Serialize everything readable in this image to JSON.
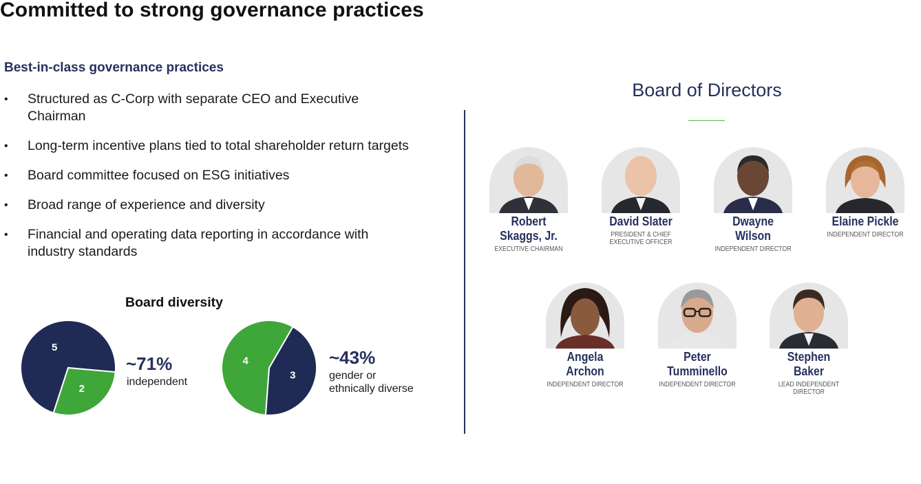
{
  "page": {
    "title": "Committed to strong governance practices",
    "subtitle": "Best-in-class governance practices",
    "bullets": [
      "Structured as C-Corp with separate CEO and Executive Chairman",
      "Long-term incentive plans tied to total shareholder return targets",
      "Board committee focused on ESG initiatives",
      "Broad range of experience and diversity",
      "Financial and operating data reporting in accordance with industry standards"
    ],
    "bullet_marker": "•"
  },
  "diversity": {
    "title": "Board diversity",
    "independent": {
      "stat": "~71%",
      "description": "independent"
    },
    "diverse": {
      "stat": "~43%",
      "description_line1": "gender or",
      "description_line2": "ethnically diverse"
    }
  },
  "chart_data": [
    {
      "type": "pie",
      "title": "",
      "slices": [
        {
          "value": 5,
          "color": "#1f2a55"
        },
        {
          "value": 2,
          "color": "#3fa63a"
        }
      ]
    },
    {
      "type": "pie",
      "title": "",
      "slices": [
        {
          "value": 3,
          "color": "#1f2a55"
        },
        {
          "value": 4,
          "color": "#3fa63a"
        }
      ]
    }
  ],
  "board": {
    "title": "Board of Directors",
    "accent_color": "#5ab14a",
    "directors": [
      {
        "name": "Robert\nSkaggs, Jr.",
        "role": "EXECUTIVE CHAIRMAN"
      },
      {
        "name": "David Slater",
        "role": "PRESIDENT & CHIEF\nEXECUTIVE OFFICER"
      },
      {
        "name": "Dwayne\nWilson",
        "role": "INDEPENDENT DIRECTOR"
      },
      {
        "name": "Elaine Pickle",
        "role": "INDEPENDENT DIRECTOR"
      },
      {
        "name": "Angela\nArchon",
        "role": "INDEPENDENT DIRECTOR"
      },
      {
        "name": "Peter\nTumminello",
        "role": "INDEPENDENT DIRECTOR"
      },
      {
        "name": "Stephen\nBaker",
        "role": "LEAD INDEPENDENT\nDIRECTOR"
      }
    ]
  }
}
